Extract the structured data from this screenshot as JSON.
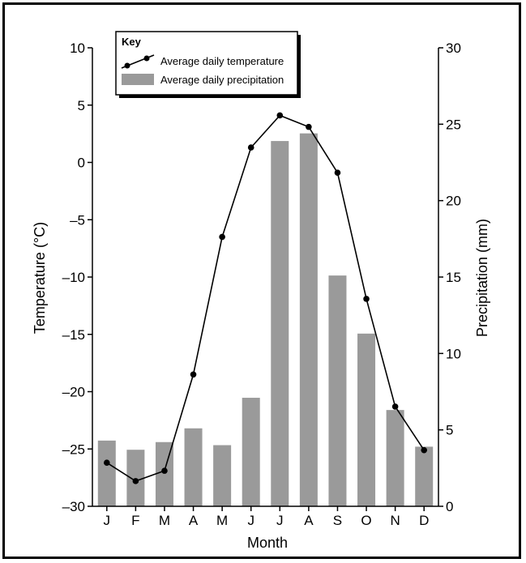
{
  "chart_data": {
    "type": "bar+line",
    "categories": [
      "J",
      "F",
      "M",
      "A",
      "M",
      "J",
      "J",
      "A",
      "S",
      "O",
      "N",
      "D"
    ],
    "series": [
      {
        "name": "Average daily temperature",
        "axis": "left",
        "kind": "line",
        "values": [
          -26.2,
          -27.8,
          -26.9,
          -18.5,
          -6.5,
          1.3,
          4.1,
          3.1,
          -0.9,
          -11.9,
          -21.3,
          -25.1
        ]
      },
      {
        "name": "Average daily precipitation",
        "axis": "right",
        "kind": "bar",
        "values": [
          4.3,
          3.7,
          4.2,
          5.1,
          4.0,
          7.1,
          23.9,
          24.4,
          15.1,
          11.3,
          6.3,
          3.9
        ]
      }
    ],
    "xlabel": "Month",
    "ylabel_left": "Temperature (°C)",
    "ylabel_right": "Precipitation (mm)",
    "ylim_left": [
      -30,
      10
    ],
    "ylim_right": [
      0,
      30
    ],
    "yticks_left": [
      "10",
      "5",
      "0",
      "–5",
      "–10",
      "–15",
      "–20",
      "–25",
      "–30"
    ],
    "yticks_right": [
      "30",
      "25",
      "20",
      "15",
      "10",
      "5",
      "0"
    ],
    "legend": {
      "title": "Key",
      "placement": "top-left",
      "items": [
        "Average daily temperature",
        "Average daily precipitation"
      ]
    },
    "colors": {
      "bar": "#9a9a9a",
      "line": "#000000"
    },
    "grid": false
  }
}
